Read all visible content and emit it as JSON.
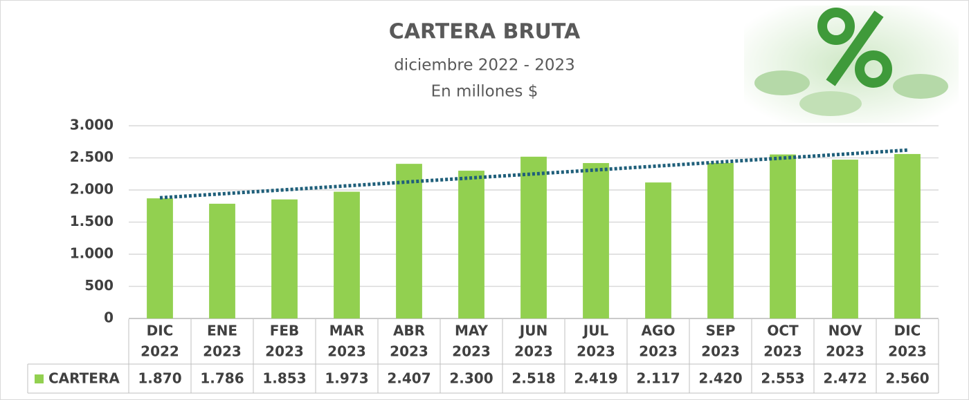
{
  "chart_data": {
    "type": "bar",
    "title": "CARTERA BRUTA",
    "subtitle": "diciembre 2022 - 2023",
    "unit_label": "En millones $",
    "categories": [
      [
        "DIC",
        "2022"
      ],
      [
        "ENE",
        "2023"
      ],
      [
        "FEB",
        "2023"
      ],
      [
        "MAR",
        "2023"
      ],
      [
        "ABR",
        "2023"
      ],
      [
        "MAY",
        "2023"
      ],
      [
        "JUN",
        "2023"
      ],
      [
        "JUL",
        "2023"
      ],
      [
        "AGO",
        "2023"
      ],
      [
        "SEP",
        "2023"
      ],
      [
        "OCT",
        "2023"
      ],
      [
        "NOV",
        "2023"
      ],
      [
        "DIC",
        "2023"
      ]
    ],
    "series": [
      {
        "name": "CARTERA",
        "color": "#92d050",
        "values": [
          1870,
          1786,
          1853,
          1973,
          2407,
          2300,
          2518,
          2419,
          2117,
          2420,
          2553,
          2472,
          2560
        ],
        "value_labels": [
          "1.870",
          "1.786",
          "1.853",
          "1.973",
          "2.407",
          "2.300",
          "2.518",
          "2.419",
          "2.117",
          "2.420",
          "2.553",
          "2.472",
          "2.560"
        ]
      }
    ],
    "trendline": {
      "type": "linear",
      "color": "#1f5f7a"
    },
    "ylim": [
      0,
      3000
    ],
    "yticks": [
      0,
      500,
      {
        "value": 1000,
        "label": "1.000"
      },
      {
        "value": 1500,
        "label": "1.500"
      },
      {
        "value": 2000,
        "label": "2.000"
      },
      {
        "value": 2500,
        "label": "2.500"
      },
      {
        "value": 3000,
        "label": "3.000"
      }
    ],
    "grid": true,
    "legend": "table"
  }
}
